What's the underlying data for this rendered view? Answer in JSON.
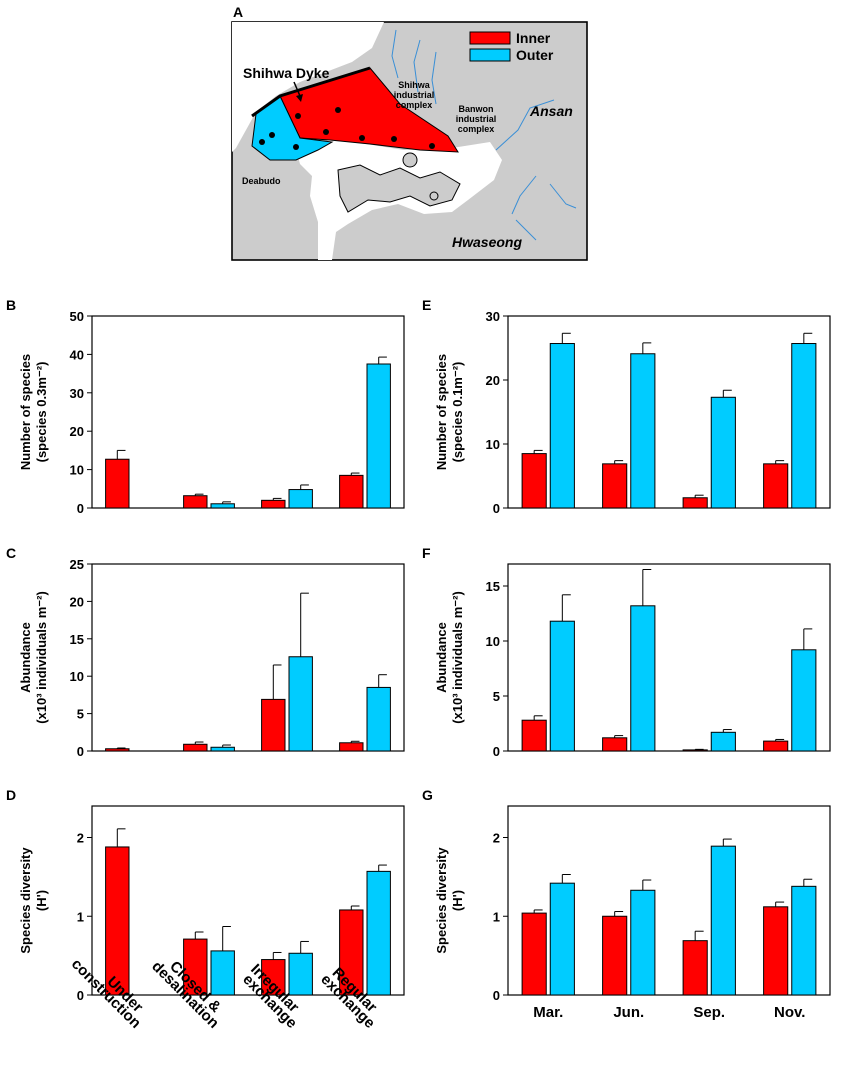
{
  "colors": {
    "inner": "#ff0000",
    "outer": "#00ccff",
    "land": "#cccccc",
    "river": "#3a8fd6",
    "light": "#ffffff"
  },
  "map": {
    "panel_letter": "A",
    "legend": {
      "inner": "Inner",
      "outer": "Outer"
    },
    "labels": {
      "dyke": "Shihwa Dyke",
      "shihwa_1": "Shihwa",
      "shihwa_2": "industrial",
      "shihwa_3": "complex",
      "banwon_1": "Banwon",
      "banwon_2": "industrial",
      "banwon_3": "complex",
      "ansan": "Ansan",
      "deabudo": "Deabudo",
      "hwaseong": "Hwaseong"
    }
  },
  "chart_data": [
    {
      "id": "B",
      "type": "bar",
      "panel_letter": "B",
      "ylabel_1": "Number of species",
      "ylabel_2": "(species 0.3m⁻²)",
      "ylim": [
        0,
        50
      ],
      "yticks": [
        0,
        10,
        20,
        30,
        40,
        50
      ],
      "categories": [
        "Under construction",
        "Closed & desalination",
        "Irregular exchange",
        "Regular exchange"
      ],
      "series": [
        {
          "name": "Inner",
          "color": "#ff0000",
          "values": [
            12.7,
            3.2,
            2.0,
            8.5
          ],
          "errors": [
            2.3,
            0.4,
            0.5,
            0.6
          ]
        },
        {
          "name": "Outer",
          "color": "#00ccff",
          "values": [
            null,
            1.1,
            4.8,
            37.5
          ],
          "errors": [
            null,
            0.5,
            1.2,
            1.8
          ]
        }
      ]
    },
    {
      "id": "C",
      "type": "bar",
      "panel_letter": "C",
      "ylabel_1": "Abundance",
      "ylabel_2": "(x10³ individuals m⁻²)",
      "ylim": [
        0,
        25
      ],
      "yticks": [
        0,
        5,
        10,
        15,
        20,
        25
      ],
      "categories": [
        "Under construction",
        "Closed & desalination",
        "Irregular exchange",
        "Regular exchange"
      ],
      "series": [
        {
          "name": "Inner",
          "color": "#ff0000",
          "values": [
            0.3,
            0.9,
            6.9,
            1.1
          ],
          "errors": [
            0.1,
            0.3,
            4.6,
            0.2
          ]
        },
        {
          "name": "Outer",
          "color": "#00ccff",
          "values": [
            null,
            0.5,
            12.6,
            8.5
          ],
          "errors": [
            null,
            0.3,
            8.5,
            1.7
          ]
        }
      ]
    },
    {
      "id": "D",
      "type": "bar",
      "panel_letter": "D",
      "ylabel_1": "Species diversity",
      "ylabel_2": "(H')",
      "ylim": [
        0,
        2.4
      ],
      "yticks": [
        0,
        1,
        2
      ],
      "categories": [
        "Under construction",
        "Closed & desalination",
        "Irregular exchange",
        "Regular exchange"
      ],
      "xtick_lines": [
        [
          "Under",
          "construction"
        ],
        [
          "Closed &",
          "desalination"
        ],
        [
          "Irregular",
          "exchange"
        ],
        [
          "Regular",
          "exchange"
        ]
      ],
      "series": [
        {
          "name": "Inner",
          "color": "#ff0000",
          "values": [
            1.88,
            0.71,
            0.45,
            1.08
          ],
          "errors": [
            0.23,
            0.09,
            0.09,
            0.05
          ]
        },
        {
          "name": "Outer",
          "color": "#00ccff",
          "values": [
            null,
            0.56,
            0.53,
            1.57
          ],
          "errors": [
            null,
            0.31,
            0.15,
            0.08
          ]
        }
      ]
    },
    {
      "id": "E",
      "type": "bar",
      "panel_letter": "E",
      "ylabel_1": "Number of species",
      "ylabel_2": "(species 0.1m⁻²)",
      "ylim": [
        0,
        30
      ],
      "yticks": [
        0,
        10,
        20,
        30
      ],
      "categories": [
        "Mar.",
        "Jun.",
        "Sep.",
        "Nov."
      ],
      "series": [
        {
          "name": "Inner",
          "color": "#ff0000",
          "values": [
            8.5,
            6.9,
            1.6,
            6.9
          ],
          "errors": [
            0.5,
            0.5,
            0.4,
            0.5
          ]
        },
        {
          "name": "Outer",
          "color": "#00ccff",
          "values": [
            25.7,
            24.1,
            17.3,
            25.7
          ],
          "errors": [
            1.6,
            1.7,
            1.1,
            1.6
          ]
        }
      ]
    },
    {
      "id": "F",
      "type": "bar",
      "panel_letter": "F",
      "ylabel_1": "Abundance",
      "ylabel_2": "(x10³ individuals m⁻²)",
      "ylim": [
        0,
        17
      ],
      "yticks": [
        0,
        5,
        10,
        15
      ],
      "categories": [
        "Mar.",
        "Jun.",
        "Sep.",
        "Nov."
      ],
      "series": [
        {
          "name": "Inner",
          "color": "#ff0000",
          "values": [
            2.8,
            1.2,
            0.1,
            0.9
          ],
          "errors": [
            0.4,
            0.2,
            0.05,
            0.15
          ]
        },
        {
          "name": "Outer",
          "color": "#00ccff",
          "values": [
            11.8,
            13.2,
            1.7,
            9.2
          ],
          "errors": [
            2.4,
            3.3,
            0.25,
            1.9
          ]
        }
      ]
    },
    {
      "id": "G",
      "type": "bar",
      "panel_letter": "G",
      "ylabel_1": "Species diversity",
      "ylabel_2": "(H')",
      "ylim": [
        0,
        2.4
      ],
      "yticks": [
        0,
        1,
        2
      ],
      "categories": [
        "Mar.",
        "Jun.",
        "Sep.",
        "Nov."
      ],
      "xtick_lines": [
        [
          "Mar."
        ],
        [
          "Jun."
        ],
        [
          "Sep."
        ],
        [
          "Nov."
        ]
      ],
      "series": [
        {
          "name": "Inner",
          "color": "#ff0000",
          "values": [
            1.04,
            1.0,
            0.69,
            1.12
          ],
          "errors": [
            0.04,
            0.06,
            0.12,
            0.06
          ]
        },
        {
          "name": "Outer",
          "color": "#00ccff",
          "values": [
            1.42,
            1.33,
            1.89,
            1.38
          ],
          "errors": [
            0.11,
            0.13,
            0.09,
            0.09
          ]
        }
      ]
    }
  ]
}
